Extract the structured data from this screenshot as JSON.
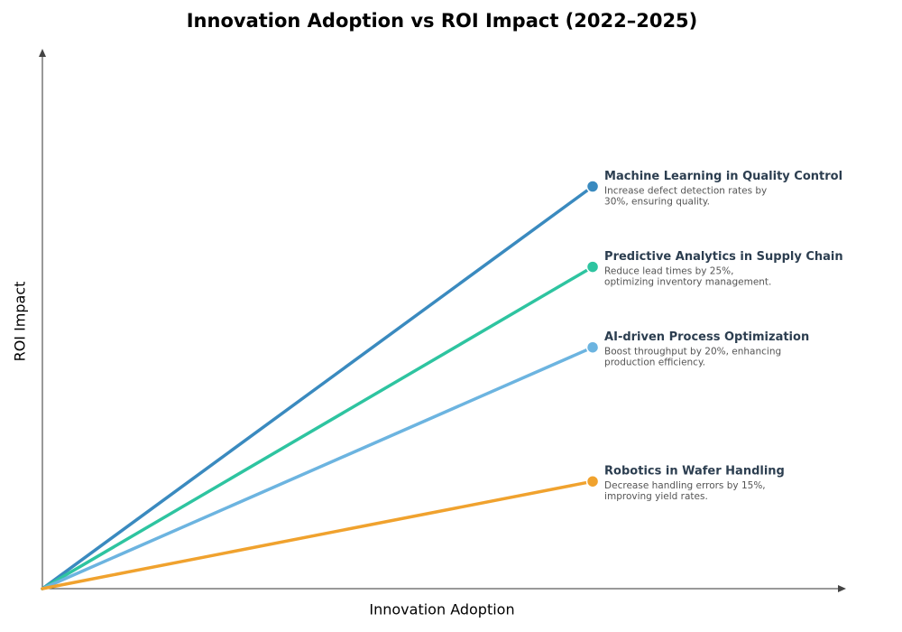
{
  "chart_data": {
    "type": "line",
    "title": "Innovation Adoption vs ROI Impact (2022–2025)",
    "x_label": "Innovation Adoption",
    "y_label": "ROI Impact",
    "xlim": [
      0,
      1
    ],
    "ylim": [
      0,
      1
    ],
    "series": [
      {
        "name": "Machine Learning in Quality Control",
        "color": "#3a8abf",
        "x": [
          0,
          0.687
        ],
        "values": [
          0,
          0.75
        ],
        "description": [
          "Increase defect detection rates by",
          "30%, ensuring quality."
        ]
      },
      {
        "name": "Predictive Analytics in Supply Chain",
        "color": "#2ec4a0",
        "x": [
          0,
          0.687
        ],
        "values": [
          0,
          0.6
        ],
        "description": [
          "Reduce lead times by 25%,",
          "optimizing inventory management."
        ]
      },
      {
        "name": "AI-driven Process Optimization",
        "color": "#6cb4e0",
        "x": [
          0,
          0.687
        ],
        "values": [
          0,
          0.45
        ],
        "description": [
          "Boost throughput by 20%, enhancing",
          "production efficiency."
        ]
      },
      {
        "name": "Robotics in Wafer Handling",
        "color": "#f0a22e",
        "x": [
          0,
          0.687
        ],
        "values": [
          0,
          0.2
        ],
        "description": [
          "Decrease handling errors by 15%,",
          "improving yield rates."
        ]
      }
    ]
  }
}
